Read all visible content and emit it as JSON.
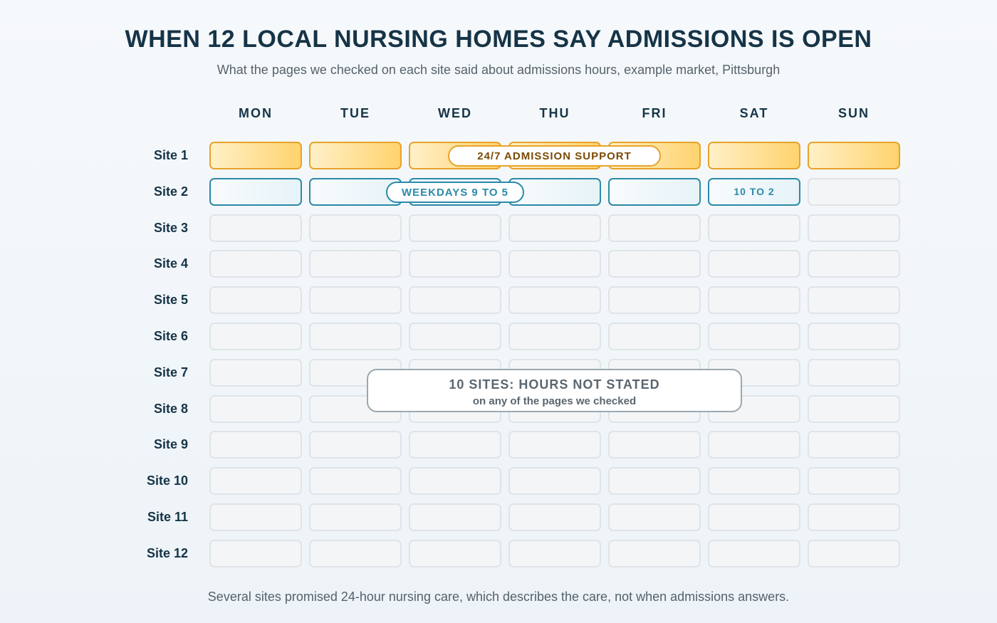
{
  "chart_data": {
    "type": "table",
    "title": "WHEN 12 LOCAL NURSING HOMES SAY ADMISSIONS IS OPEN",
    "subtitle": "What the pages we checked on each site said about admissions hours, example market, Pittsburgh",
    "days": [
      "MON",
      "TUE",
      "WED",
      "THU",
      "FRI",
      "SAT",
      "SUN"
    ],
    "rows": [
      {
        "label": "Site 1",
        "cells": [
          "247",
          "247",
          "247",
          "247",
          "247",
          "247",
          "247"
        ],
        "cell_texts": [
          "",
          "",
          "",
          "",
          "",
          "",
          ""
        ]
      },
      {
        "label": "Site 2",
        "cells": [
          "wk",
          "wk",
          "wk",
          "wk",
          "wk",
          "sat",
          "none"
        ],
        "cell_texts": [
          "",
          "",
          "",
          "",
          "",
          "10 TO 2",
          ""
        ]
      },
      {
        "label": "Site 3",
        "cells": [
          "none",
          "none",
          "none",
          "none",
          "none",
          "none",
          "none"
        ],
        "cell_texts": [
          "",
          "",
          "",
          "",
          "",
          "",
          ""
        ]
      },
      {
        "label": "Site 4",
        "cells": [
          "none",
          "none",
          "none",
          "none",
          "none",
          "none",
          "none"
        ],
        "cell_texts": [
          "",
          "",
          "",
          "",
          "",
          "",
          ""
        ]
      },
      {
        "label": "Site 5",
        "cells": [
          "none",
          "none",
          "none",
          "none",
          "none",
          "none",
          "none"
        ],
        "cell_texts": [
          "",
          "",
          "",
          "",
          "",
          "",
          ""
        ]
      },
      {
        "label": "Site 6",
        "cells": [
          "none",
          "none",
          "none",
          "none",
          "none",
          "none",
          "none"
        ],
        "cell_texts": [
          "",
          "",
          "",
          "",
          "",
          "",
          ""
        ]
      },
      {
        "label": "Site 7",
        "cells": [
          "none",
          "none",
          "none",
          "none",
          "none",
          "none",
          "none"
        ],
        "cell_texts": [
          "",
          "",
          "",
          "",
          "",
          "",
          ""
        ]
      },
      {
        "label": "Site 8",
        "cells": [
          "none",
          "none",
          "none",
          "none",
          "none",
          "none",
          "none"
        ],
        "cell_texts": [
          "",
          "",
          "",
          "",
          "",
          "",
          ""
        ]
      },
      {
        "label": "Site 9",
        "cells": [
          "none",
          "none",
          "none",
          "none",
          "none",
          "none",
          "none"
        ],
        "cell_texts": [
          "",
          "",
          "",
          "",
          "",
          "",
          ""
        ]
      },
      {
        "label": "Site 10",
        "cells": [
          "none",
          "none",
          "none",
          "none",
          "none",
          "none",
          "none"
        ],
        "cell_texts": [
          "",
          "",
          "",
          "",
          "",
          "",
          ""
        ]
      },
      {
        "label": "Site 11",
        "cells": [
          "none",
          "none",
          "none",
          "none",
          "none",
          "none",
          "none"
        ],
        "cell_texts": [
          "",
          "",
          "",
          "",
          "",
          "",
          ""
        ]
      },
      {
        "label": "Site 12",
        "cells": [
          "none",
          "none",
          "none",
          "none",
          "none",
          "none",
          "none"
        ],
        "cell_texts": [
          "",
          "",
          "",
          "",
          "",
          "",
          ""
        ]
      }
    ],
    "annotations": {
      "site1": "24/7 ADMISSION SUPPORT",
      "site2": "WEEKDAYS 9 TO 5",
      "not_stated_main": "10 SITES: HOURS NOT STATED",
      "not_stated_sub": "on any of the pages we checked"
    },
    "footnote": "Several sites promised 24-hour nursing care, which describes the care, not when admissions answers.",
    "colors": {
      "open_247_border": "#e8a32a",
      "open_247_fill": "#ffd36e",
      "weekday_border": "#2a8aa7",
      "weekday_fill": "#e6f3f8",
      "not_stated_fill": "#f3f5f7",
      "heading": "#163447"
    }
  }
}
